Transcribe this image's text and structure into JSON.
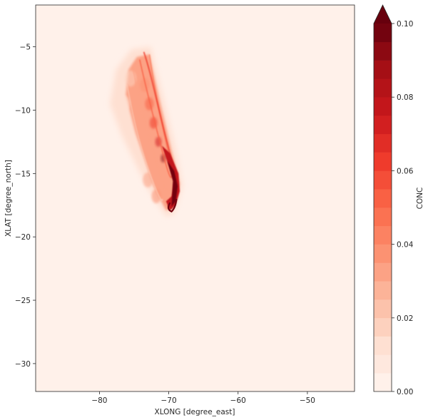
{
  "chart_data": {
    "type": "heatmap",
    "title": "",
    "xlabel": "XLONG [degree_east]",
    "ylabel": "XLAT [degree_north]",
    "xlim": [
      -89.2,
      -43.2
    ],
    "ylim": [
      -32.2,
      -1.7
    ],
    "xticks": [
      -80,
      -70,
      -60,
      -50
    ],
    "xtick_labels": [
      "−80",
      "−70",
      "−60",
      "−50"
    ],
    "yticks": [
      -5,
      -10,
      -15,
      -20,
      -25,
      -30
    ],
    "ytick_labels": [
      "−5",
      "−10",
      "−15",
      "−20",
      "−25",
      "−30"
    ],
    "colormap": "Reds",
    "colorbar": {
      "label": "CONC",
      "min": 0.0,
      "max": 0.1,
      "levels": 20,
      "extend": "max",
      "ticks": [
        0.0,
        0.02,
        0.04,
        0.06,
        0.08,
        0.1
      ],
      "tick_labels": [
        "0.00",
        "0.02",
        "0.04",
        "0.06",
        "0.08",
        "0.10"
      ]
    },
    "background_value": 0.003,
    "plume": [
      {
        "lon": -69.0,
        "lat": -16.0,
        "conc": 0.1
      },
      {
        "lon": -69.8,
        "lat": -17.5,
        "conc": 0.1
      },
      {
        "lon": -70.8,
        "lat": -13.8,
        "conc": 0.09
      },
      {
        "lon": -71.5,
        "lat": -12.5,
        "conc": 0.075
      },
      {
        "lon": -72.2,
        "lat": -11.0,
        "conc": 0.06
      },
      {
        "lon": -72.8,
        "lat": -9.5,
        "conc": 0.05
      },
      {
        "lon": -73.5,
        "lat": -8.0,
        "conc": 0.04
      },
      {
        "lon": -74.5,
        "lat": -6.8,
        "conc": 0.03
      },
      {
        "lon": -75.5,
        "lat": -7.5,
        "conc": 0.02
      },
      {
        "lon": -76.5,
        "lat": -9.5,
        "conc": 0.012
      },
      {
        "lon": -73.0,
        "lat": -15.5,
        "conc": 0.03
      },
      {
        "lon": -71.8,
        "lat": -16.8,
        "conc": 0.04
      }
    ]
  }
}
